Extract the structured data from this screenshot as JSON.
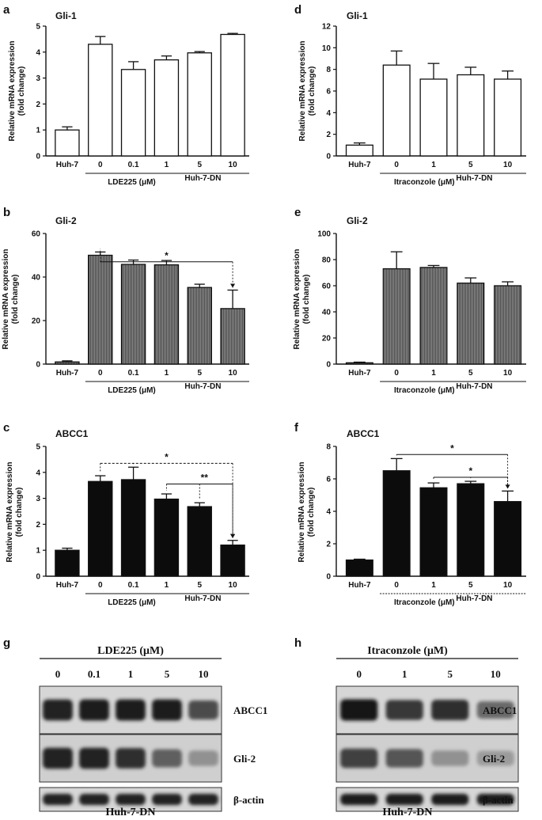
{
  "chart_data": [
    {
      "id": "a",
      "panel_label": "a",
      "type": "bar",
      "title": "Gli-1",
      "ylabel_line1": "Relative mRNA expression",
      "ylabel_line2": "(fold change)",
      "ylim": [
        0,
        5
      ],
      "yticks": [
        "0",
        "1",
        "2",
        "3",
        "4",
        "5"
      ],
      "categories": [
        "Huh-7",
        "0",
        "0.1",
        "1",
        "5",
        "10"
      ],
      "values": [
        1.0,
        4.3,
        3.33,
        3.7,
        3.97,
        4.68
      ],
      "errors": [
        0.12,
        0.3,
        0.3,
        0.15,
        0.05,
        0.04
      ],
      "fill": "white",
      "treatment_label": "LDE225 (μM)",
      "group_label": "Huh-7-DN",
      "significance": []
    },
    {
      "id": "b",
      "panel_label": "b",
      "type": "bar",
      "title": "Gli-2",
      "ylabel_line1": "Relative mRNA expression",
      "ylabel_line2": "(fold change)",
      "ylim": [
        0,
        60
      ],
      "yticks": [
        "0",
        "20",
        "40",
        "60"
      ],
      "categories": [
        "Huh-7",
        "0",
        "0.1",
        "1",
        "5",
        "10"
      ],
      "values": [
        1.0,
        50,
        45.8,
        45.6,
        35.2,
        25.5
      ],
      "errors": [
        0.5,
        1.5,
        2.0,
        2.0,
        1.5,
        8.5
      ],
      "fill": "gray",
      "treatment_label": "LDE225 (μM)",
      "group_label": "Huh-7-DN",
      "significance": [
        {
          "label": "*"
        }
      ]
    },
    {
      "id": "c",
      "panel_label": "c",
      "type": "bar",
      "title": "ABCC1",
      "ylabel_line1": "Relative mRNA expression",
      "ylabel_line2": "(fold change)",
      "ylim": [
        0,
        5
      ],
      "yticks": [
        "0",
        "1",
        "2",
        "3",
        "4",
        "5"
      ],
      "categories": [
        "Huh-7",
        "0",
        "0.1",
        "1",
        "5",
        "10"
      ],
      "values": [
        1.0,
        3.65,
        3.72,
        2.97,
        2.68,
        1.2
      ],
      "errors": [
        0.08,
        0.22,
        0.48,
        0.2,
        0.15,
        0.18
      ],
      "fill": "black",
      "treatment_label": "LDE225 (μM)",
      "group_label": "Huh-7-DN",
      "significance": [
        {
          "label": "*"
        },
        {
          "label": "**"
        }
      ]
    },
    {
      "id": "d",
      "panel_label": "d",
      "type": "bar",
      "title": "Gli-1",
      "ylabel_line1": "Relative mRNA expression",
      "ylabel_line2": "(fold change)",
      "ylim": [
        0,
        12
      ],
      "yticks": [
        "0",
        "2",
        "4",
        "6",
        "8",
        "10",
        "12"
      ],
      "categories": [
        "Huh-7",
        "0",
        "1",
        "5",
        "10"
      ],
      "values": [
        1.0,
        8.4,
        7.1,
        7.5,
        7.1
      ],
      "errors": [
        0.2,
        1.3,
        1.45,
        0.7,
        0.75
      ],
      "fill": "white",
      "treatment_label": "Itraconzole (μM)",
      "group_label": "Huh-7-DN",
      "significance": []
    },
    {
      "id": "e",
      "panel_label": "e",
      "type": "bar",
      "title": "Gli-2",
      "ylabel_line1": "Relative mRNA expression",
      "ylabel_line2": "(fold change)",
      "ylim": [
        0,
        100
      ],
      "yticks": [
        "0",
        "20",
        "40",
        "60",
        "80",
        "100"
      ],
      "categories": [
        "Huh-7",
        "0",
        "1",
        "5",
        "10"
      ],
      "values": [
        1.0,
        73,
        74,
        62,
        60
      ],
      "errors": [
        0.5,
        13,
        1.5,
        4,
        3
      ],
      "fill": "gray",
      "treatment_label": "Itraconzole (μM)",
      "group_label": "Huh-7-DN",
      "significance": []
    },
    {
      "id": "f",
      "panel_label": "f",
      "type": "bar",
      "title": "ABCC1",
      "ylabel_line1": "Relative mRNA expression",
      "ylabel_line2": "(fold change)",
      "ylim": [
        0,
        8
      ],
      "yticks": [
        "0",
        "2",
        "4",
        "6",
        "8"
      ],
      "categories": [
        "Huh-7",
        "0",
        "1",
        "5",
        "10"
      ],
      "values": [
        1.0,
        6.5,
        5.45,
        5.7,
        4.6
      ],
      "errors": [
        0.05,
        0.75,
        0.3,
        0.15,
        0.65
      ],
      "fill": "black",
      "treatment_label": "Itraconzole (μM)",
      "group_label": "Huh-7-DN",
      "significance": [
        {
          "label": "*"
        },
        {
          "label": "*"
        }
      ]
    }
  ],
  "blots": [
    {
      "id": "g",
      "panel_label": "g",
      "treatment_label": "LDE225 (μM)",
      "lane_labels": [
        "0",
        "0.1",
        "1",
        "5",
        "10"
      ],
      "bands": [
        {
          "name": "ABCC1",
          "intensities": [
            0.9,
            0.92,
            0.92,
            0.92,
            0.7
          ]
        },
        {
          "name": "Gli-2",
          "intensities": [
            0.9,
            0.9,
            0.85,
            0.6,
            0.35
          ]
        },
        {
          "name": "β-actin",
          "intensities": [
            0.9,
            0.9,
            0.9,
            0.9,
            0.9
          ]
        }
      ],
      "cell_line": "Huh-7-DN"
    },
    {
      "id": "h",
      "panel_label": "h",
      "treatment_label": "Itraconzole (μM)",
      "lane_labels": [
        "0",
        "1",
        "5",
        "10"
      ],
      "bands": [
        {
          "name": "ABCC1",
          "intensities": [
            0.95,
            0.8,
            0.85,
            0.55
          ]
        },
        {
          "name": "Gli-2",
          "intensities": [
            0.75,
            0.65,
            0.35,
            0.3
          ]
        },
        {
          "name": "β-actin",
          "intensities": [
            0.92,
            0.92,
            0.92,
            0.92
          ]
        }
      ],
      "cell_line": "Huh-7-DN"
    }
  ]
}
